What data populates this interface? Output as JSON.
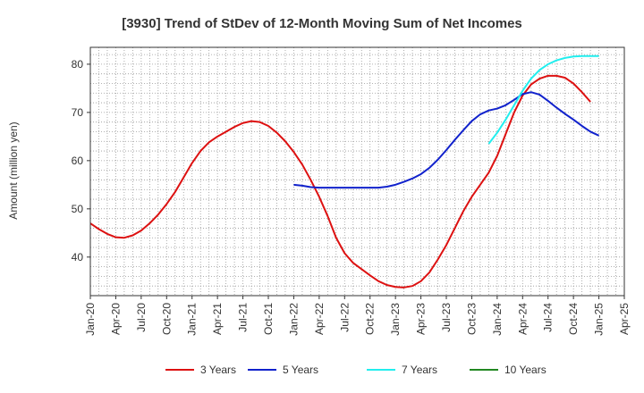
{
  "chart_data": {
    "type": "line",
    "title": "[3930]  Trend of StDev of 12-Month Moving Sum of Net Incomes",
    "xlabel": "",
    "ylabel": "Amount (million yen)",
    "ylim": [
      32,
      83.5
    ],
    "yticks": [
      40,
      50,
      60,
      70,
      80
    ],
    "xlim": [
      "2020-01",
      "2025-04"
    ],
    "xticks": [
      "Jan-20",
      "Apr-20",
      "Jul-20",
      "Oct-20",
      "Jan-21",
      "Apr-21",
      "Jul-21",
      "Oct-21",
      "Jan-22",
      "Apr-22",
      "Jul-22",
      "Oct-22",
      "Jan-23",
      "Apr-23",
      "Jul-23",
      "Oct-23",
      "Jan-24",
      "Apr-24",
      "Jul-24",
      "Oct-24",
      "Jan-25",
      "Apr-25"
    ],
    "grid": true,
    "legend_position": "bottom",
    "series": [
      {
        "name": "3 Years",
        "color": "#dd1111",
        "points": [
          [
            "2020-01",
            47.0
          ],
          [
            "2020-02",
            45.8
          ],
          [
            "2020-03",
            44.8
          ],
          [
            "2020-04",
            44.1
          ],
          [
            "2020-05",
            44.0
          ],
          [
            "2020-06",
            44.5
          ],
          [
            "2020-07",
            45.5
          ],
          [
            "2020-08",
            47.0
          ],
          [
            "2020-09",
            48.8
          ],
          [
            "2020-10",
            51.0
          ],
          [
            "2020-11",
            53.5
          ],
          [
            "2020-12",
            56.5
          ],
          [
            "2021-01",
            59.5
          ],
          [
            "2021-02",
            62.0
          ],
          [
            "2021-03",
            63.8
          ],
          [
            "2021-04",
            65.0
          ],
          [
            "2021-05",
            66.0
          ],
          [
            "2021-06",
            67.0
          ],
          [
            "2021-07",
            67.8
          ],
          [
            "2021-08",
            68.2
          ],
          [
            "2021-09",
            68.0
          ],
          [
            "2021-10",
            67.2
          ],
          [
            "2021-11",
            65.8
          ],
          [
            "2021-12",
            64.0
          ],
          [
            "2022-01",
            61.8
          ],
          [
            "2022-02",
            59.2
          ],
          [
            "2022-03",
            56.0
          ],
          [
            "2022-04",
            52.5
          ],
          [
            "2022-05",
            48.5
          ],
          [
            "2022-06",
            44.0
          ],
          [
            "2022-07",
            40.8
          ],
          [
            "2022-08",
            38.8
          ],
          [
            "2022-09",
            37.5
          ],
          [
            "2022-10",
            36.2
          ],
          [
            "2022-11",
            35.0
          ],
          [
            "2022-12",
            34.2
          ],
          [
            "2023-01",
            33.8
          ],
          [
            "2023-02",
            33.7
          ],
          [
            "2023-03",
            34.0
          ],
          [
            "2023-04",
            35.0
          ],
          [
            "2023-05",
            36.8
          ],
          [
            "2023-06",
            39.5
          ],
          [
            "2023-07",
            42.5
          ],
          [
            "2023-08",
            46.0
          ],
          [
            "2023-09",
            49.5
          ],
          [
            "2023-10",
            52.5
          ],
          [
            "2023-11",
            55.0
          ],
          [
            "2023-12",
            57.5
          ],
          [
            "2024-01",
            61.0
          ],
          [
            "2024-02",
            65.5
          ],
          [
            "2024-03",
            70.0
          ],
          [
            "2024-04",
            73.5
          ],
          [
            "2024-05",
            75.8
          ],
          [
            "2024-06",
            77.0
          ],
          [
            "2024-07",
            77.6
          ],
          [
            "2024-08",
            77.6
          ],
          [
            "2024-09",
            77.2
          ],
          [
            "2024-10",
            76.0
          ],
          [
            "2024-11",
            74.2
          ],
          [
            "2024-12",
            72.2
          ]
        ]
      },
      {
        "name": "5 Years",
        "color": "#1122cc",
        "points": [
          [
            "2022-01",
            55.0
          ],
          [
            "2022-02",
            54.8
          ],
          [
            "2022-03",
            54.5
          ],
          [
            "2022-04",
            54.4
          ],
          [
            "2022-05",
            54.4
          ],
          [
            "2022-06",
            54.4
          ],
          [
            "2022-07",
            54.4
          ],
          [
            "2022-08",
            54.4
          ],
          [
            "2022-09",
            54.4
          ],
          [
            "2022-10",
            54.4
          ],
          [
            "2022-11",
            54.4
          ],
          [
            "2022-12",
            54.6
          ],
          [
            "2023-01",
            55.0
          ],
          [
            "2023-02",
            55.6
          ],
          [
            "2023-03",
            56.3
          ],
          [
            "2023-04",
            57.2
          ],
          [
            "2023-05",
            58.5
          ],
          [
            "2023-06",
            60.2
          ],
          [
            "2023-07",
            62.2
          ],
          [
            "2023-08",
            64.3
          ],
          [
            "2023-09",
            66.3
          ],
          [
            "2023-10",
            68.2
          ],
          [
            "2023-11",
            69.6
          ],
          [
            "2023-12",
            70.4
          ],
          [
            "2024-01",
            70.8
          ],
          [
            "2024-02",
            71.5
          ],
          [
            "2024-03",
            72.6
          ],
          [
            "2024-04",
            73.8
          ],
          [
            "2024-05",
            74.2
          ],
          [
            "2024-06",
            73.7
          ],
          [
            "2024-07",
            72.4
          ],
          [
            "2024-08",
            71.0
          ],
          [
            "2024-09",
            69.7
          ],
          [
            "2024-10",
            68.5
          ],
          [
            "2024-11",
            67.2
          ],
          [
            "2024-12",
            66.0
          ],
          [
            "2025-01",
            65.2
          ]
        ]
      },
      {
        "name": "7 Years",
        "color": "#22eeee",
        "points": [
          [
            "2023-12",
            63.5
          ],
          [
            "2024-01",
            65.8
          ],
          [
            "2024-02",
            68.5
          ],
          [
            "2024-03",
            71.5
          ],
          [
            "2024-04",
            74.5
          ],
          [
            "2024-05",
            77.0
          ],
          [
            "2024-06",
            78.8
          ],
          [
            "2024-07",
            80.0
          ],
          [
            "2024-08",
            80.8
          ],
          [
            "2024-09",
            81.3
          ],
          [
            "2024-10",
            81.6
          ],
          [
            "2024-11",
            81.7
          ],
          [
            "2024-12",
            81.7
          ],
          [
            "2025-01",
            81.7
          ]
        ]
      },
      {
        "name": "10 Years",
        "color": "#228822",
        "points": []
      }
    ]
  }
}
